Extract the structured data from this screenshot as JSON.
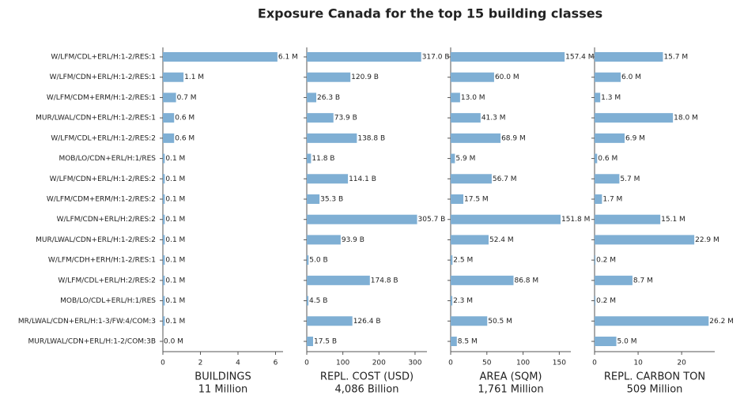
{
  "chart_data": {
    "type": "bar",
    "title": "Exposure Canada for the top 15 building classes",
    "color": "#7fafd4",
    "categories": [
      "W/LFM/CDL+ERL/H:1-2/RES:1",
      "W/LFM/CDN+ERL/H:1-2/RES:1",
      "W/LFM/CDM+ERM/H:1-2/RES:1",
      "MUR/LWAL/CDN+ERL/H:1-2/RES:1",
      "W/LFM/CDL+ERL/H:1-2/RES:2",
      "MOB/LO/CDN+ERL/H:1/RES",
      "W/LFM/CDN+ERL/H:1-2/RES:2",
      "W/LFM/CDM+ERM/H:1-2/RES:2",
      "W/LFM/CDN+ERL/H:2/RES:2",
      "MUR/LWAL/CDN+ERL/H:1-2/RES:2",
      "W/LFM/CDH+ERH/H:1-2/RES:1",
      "W/LFM/CDL+ERL/H:2/RES:2",
      "MOB/LO/CDL+ERL/H:1/RES",
      "MR/LWAL/CDN+ERL/H:1-3/FW:4/COM:3",
      "MUR/LWAL/CDN+ERL/H:1-2/COM:3B"
    ],
    "panels": [
      {
        "xlabel": [
          "BUILDINGS",
          "11 Million"
        ],
        "xlim": [
          0,
          6.4
        ],
        "xticks": [
          0,
          2,
          4,
          6
        ],
        "values": [
          6.1,
          1.1,
          0.7,
          0.6,
          0.6,
          0.1,
          0.1,
          0.1,
          0.1,
          0.1,
          0.1,
          0.1,
          0.1,
          0.1,
          0.0
        ],
        "value_labels": [
          "6.1 M",
          "1.1 M",
          "0.7 M",
          "0.6 M",
          "0.6 M",
          "0.1 M",
          "0.1 M",
          "0.1 M",
          "0.1 M",
          "0.1 M",
          "0.1 M",
          "0.1 M",
          "0.1 M",
          "0.1 M",
          "0.0 M"
        ]
      },
      {
        "xlabel": [
          "REPL. COST (USD)",
          "4,086 Billion"
        ],
        "xlim": [
          0,
          333
        ],
        "xticks": [
          0,
          100,
          200,
          300
        ],
        "values": [
          317.0,
          120.9,
          26.3,
          73.9,
          138.8,
          11.8,
          114.1,
          35.3,
          305.7,
          93.9,
          5.0,
          174.8,
          4.5,
          126.4,
          17.5
        ],
        "value_labels": [
          "317.0 B",
          "120.9 B",
          "26.3 B",
          "73.9 B",
          "138.8 B",
          "11.8 B",
          "114.1 B",
          "35.3 B",
          "305.7 B",
          "93.9 B",
          "5.0 B",
          "174.8 B",
          "4.5 B",
          "126.4 B",
          "17.5 B"
        ]
      },
      {
        "xlabel": [
          "AREA (SQM)",
          "1,761 Million"
        ],
        "xlim": [
          0,
          166
        ],
        "xticks": [
          0,
          50,
          100,
          150
        ],
        "values": [
          157.4,
          60.0,
          13.0,
          41.3,
          68.9,
          5.9,
          56.7,
          17.5,
          151.8,
          52.4,
          2.5,
          86.8,
          2.3,
          50.5,
          8.5
        ],
        "value_labels": [
          "157.4 M",
          "60.0 M",
          "13.0 M",
          "41.3 M",
          "68.9 M",
          "5.9 M",
          "56.7 M",
          "17.5 M",
          "151.8 M",
          "52.4 M",
          "2.5 M",
          "86.8 M",
          "2.3 M",
          "50.5 M",
          "8.5 M"
        ]
      },
      {
        "xlabel": [
          "REPL. CARBON TON",
          "509 Million"
        ],
        "xlim": [
          0,
          27.6
        ],
        "xticks": [
          0,
          10,
          20
        ],
        "values": [
          15.7,
          6.0,
          1.3,
          18.0,
          6.9,
          0.6,
          5.7,
          1.7,
          15.1,
          22.9,
          0.2,
          8.7,
          0.2,
          26.2,
          5.0
        ],
        "value_labels": [
          "15.7 M",
          "6.0 M",
          "1.3 M",
          "18.0 M",
          "6.9 M",
          "0.6 M",
          "5.7 M",
          "1.7 M",
          "15.1 M",
          "22.9 M",
          "0.2 M",
          "8.7 M",
          "0.2 M",
          "26.2 M",
          "5.0 M"
        ]
      }
    ]
  }
}
